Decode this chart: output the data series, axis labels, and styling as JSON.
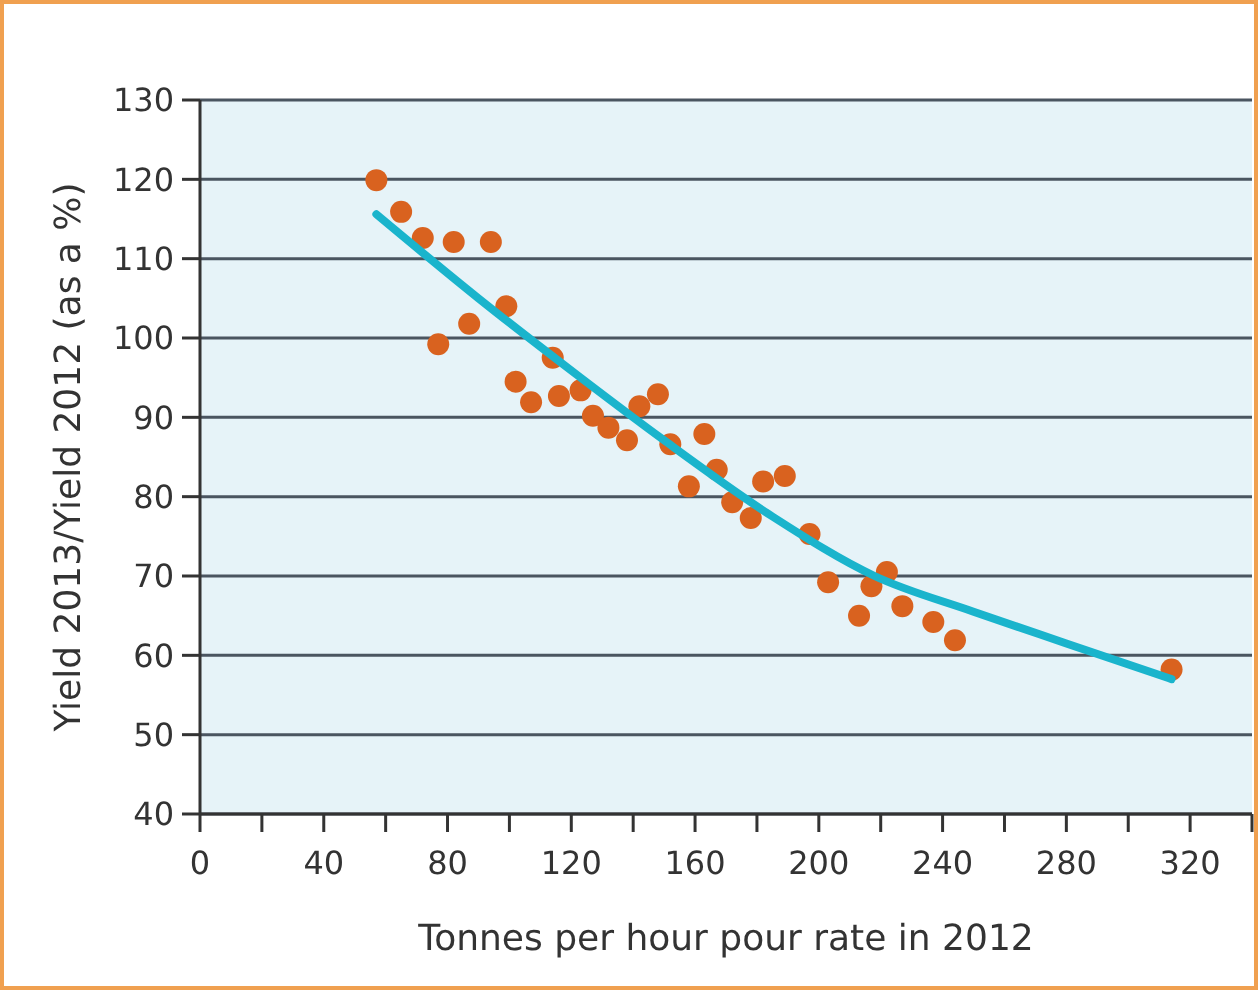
{
  "chart_data": {
    "type": "scatter",
    "xlabel": "Tonnes per hour pour rate in 2012",
    "ylabel": "Yield 2013/Yield 2012 (as a %)",
    "xlim": [
      0,
      340
    ],
    "ylim": [
      40,
      130
    ],
    "xticks": [
      0,
      {
        "value": 20,
        "label": null
      },
      40,
      {
        "value": 60,
        "label": null
      },
      80,
      {
        "value": 100,
        "label": null
      },
      120,
      {
        "value": 140,
        "label": null
      },
      160,
      {
        "value": 180,
        "label": null
      },
      200,
      {
        "value": 220,
        "label": null
      },
      240,
      {
        "value": 260,
        "label": null
      },
      280,
      {
        "value": 300,
        "label": null
      },
      320,
      {
        "value": 340,
        "label": null
      }
    ],
    "yticks": [
      40,
      50,
      60,
      70,
      80,
      90,
      100,
      110,
      120,
      130
    ],
    "grid": "y",
    "marker": "circle",
    "series": [
      {
        "color": "#d9621f",
        "x": [
          57,
          65,
          72,
          82,
          94,
          77,
          87,
          99,
          102,
          107,
          114,
          116,
          123,
          127,
          132,
          138,
          142,
          148,
          152,
          158,
          163,
          167,
          172,
          178,
          182,
          189,
          197,
          203,
          213,
          217,
          222,
          227,
          237,
          244,
          314
        ],
        "values": [
          119.9,
          115.9,
          112.6,
          112.1,
          112.1,
          99.2,
          101.8,
          104,
          94.5,
          91.9,
          97.5,
          92.7,
          93.4,
          90.2,
          88.7,
          87.1,
          91.4,
          92.9,
          86.6,
          81.3,
          87.9,
          83.4,
          79.3,
          77.3,
          81.9,
          82.6,
          75.3,
          69.2,
          65,
          68.7,
          70.5,
          66.2,
          64.2,
          61.9,
          58.2
        ]
      },
      {
        "type": "line",
        "color": "#1ab4cc",
        "marker": "none",
        "x": [
          57,
          90,
          123,
          150,
          185,
          218,
          250,
          280,
          314
        ],
        "values": [
          115.6,
          105,
          95,
          87.1,
          77.5,
          70,
          65.5,
          61.5,
          57
        ]
      }
    ]
  }
}
